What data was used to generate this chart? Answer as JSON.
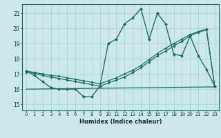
{
  "xlabel": "Humidex (Indice chaleur)",
  "xlim": [
    -0.5,
    23.5
  ],
  "ylim": [
    14.6,
    21.6
  ],
  "yticks": [
    15,
    16,
    17,
    18,
    19,
    20,
    21
  ],
  "xticks": [
    0,
    1,
    2,
    3,
    4,
    5,
    6,
    7,
    8,
    9,
    10,
    11,
    12,
    13,
    14,
    15,
    16,
    17,
    18,
    19,
    20,
    21,
    22,
    23
  ],
  "bg_color": "#cce8e8",
  "grid_color": "#a8d0d0",
  "line_color": "#1a7060",
  "line1_x": [
    0,
    1,
    2,
    3,
    4,
    5,
    6,
    7,
    8,
    9,
    10,
    11,
    12,
    13,
    14,
    15,
    16,
    17,
    18,
    19,
    20,
    21,
    22,
    23
  ],
  "line1_y": [
    17.2,
    16.9,
    16.5,
    16.1,
    16.0,
    16.0,
    16.0,
    15.5,
    15.5,
    16.2,
    19.0,
    19.3,
    20.3,
    20.7,
    21.3,
    19.3,
    21.0,
    20.3,
    18.3,
    18.2,
    19.5,
    18.2,
    17.3,
    16.2
  ],
  "line2_x": [
    0,
    1,
    2,
    3,
    4,
    5,
    6,
    7,
    8,
    9,
    10,
    11,
    12,
    13,
    14,
    15,
    16,
    17,
    18,
    19,
    20,
    21,
    22,
    23
  ],
  "line2_y": [
    17.1,
    17.05,
    16.9,
    16.8,
    16.7,
    16.6,
    16.5,
    16.4,
    16.3,
    16.2,
    16.4,
    16.6,
    16.8,
    17.1,
    17.4,
    17.8,
    18.2,
    18.5,
    18.85,
    19.15,
    19.5,
    19.75,
    19.9,
    16.2
  ],
  "line3_x": [
    0,
    1,
    2,
    3,
    4,
    5,
    6,
    7,
    8,
    9,
    10,
    11,
    12,
    13,
    14,
    15,
    16,
    17,
    18,
    19,
    20,
    21,
    22,
    23
  ],
  "line3_y": [
    17.2,
    17.1,
    17.0,
    16.9,
    16.85,
    16.75,
    16.65,
    16.55,
    16.45,
    16.35,
    16.55,
    16.75,
    17.0,
    17.25,
    17.55,
    17.95,
    18.35,
    18.7,
    19.0,
    19.3,
    19.6,
    19.8,
    19.95,
    16.2
  ],
  "line4_x": [
    0,
    23
  ],
  "line4_y": [
    16.0,
    16.15
  ]
}
